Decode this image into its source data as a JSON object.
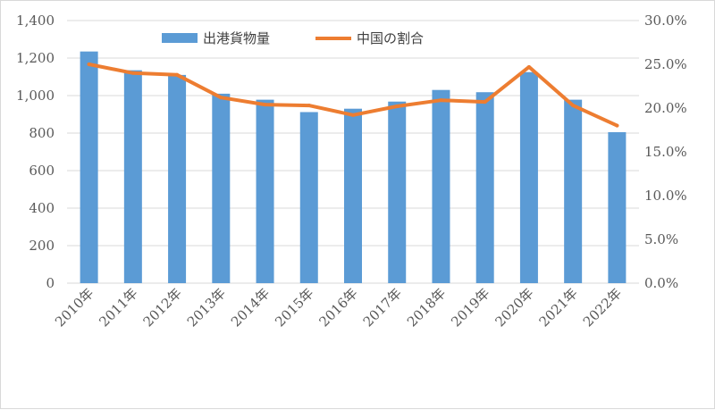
{
  "chart_data": {
    "type": "bar",
    "categories": [
      "2010年",
      "2011年",
      "2012年",
      "2013年",
      "2014年",
      "2015年",
      "2016年",
      "2017年",
      "2018年",
      "2019年",
      "2020年",
      "2021年",
      "2022年"
    ],
    "series": [
      {
        "name": "出港貨物量",
        "type": "bar",
        "axis": "left",
        "color": "#5b9bd5",
        "values": [
          1235,
          1135,
          1110,
          1010,
          978,
          912,
          930,
          968,
          1030,
          1018,
          1125,
          978,
          805
        ]
      },
      {
        "name": "中国の割合",
        "type": "line",
        "axis": "right",
        "color": "#ed7d31",
        "values": [
          25.0,
          24.0,
          23.8,
          21.2,
          20.4,
          20.3,
          19.2,
          20.2,
          20.9,
          20.7,
          24.7,
          20.3,
          18.0
        ]
      }
    ],
    "y_left": {
      "ylim": [
        0,
        1400
      ],
      "ticks": [
        0,
        200,
        400,
        600,
        800,
        1000,
        1200,
        1400
      ],
      "tick_labels": [
        "0",
        "200",
        "400",
        "600",
        "800",
        "1,000",
        "1,200",
        "1,400"
      ]
    },
    "y_right": {
      "ylim": [
        0,
        30
      ],
      "ticks": [
        0,
        5,
        10,
        15,
        20,
        25,
        30
      ],
      "tick_labels": [
        "0.0%",
        "5.0%",
        "10.0%",
        "15.0%",
        "20.0%",
        "25.0%",
        "30.0%"
      ]
    },
    "grid": true,
    "legend": "top-center"
  }
}
